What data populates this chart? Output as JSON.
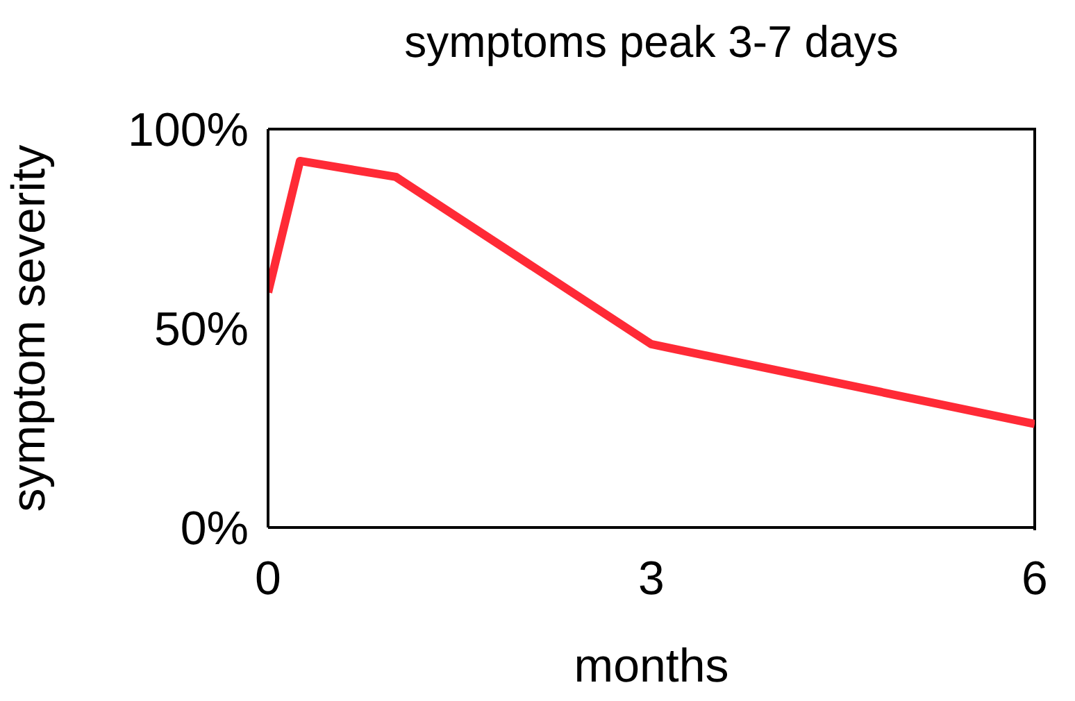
{
  "chart_data": {
    "type": "line",
    "title": "symptoms peak 3-7 days",
    "xlabel": "months",
    "ylabel": "symptom severity",
    "x": [
      0,
      0.25,
      1,
      3,
      6
    ],
    "series": [
      {
        "color": "#ff2a36",
        "values": [
          59,
          92,
          88,
          46,
          26
        ]
      }
    ],
    "xlim": [
      0,
      6
    ],
    "xticks": [
      0,
      3,
      6
    ],
    "ylim": [
      0,
      100
    ],
    "yticks": [
      {
        "value": 0,
        "label": "0%"
      },
      {
        "value": 50,
        "label": "50%"
      },
      {
        "value": 100,
        "label": "100%"
      }
    ]
  }
}
